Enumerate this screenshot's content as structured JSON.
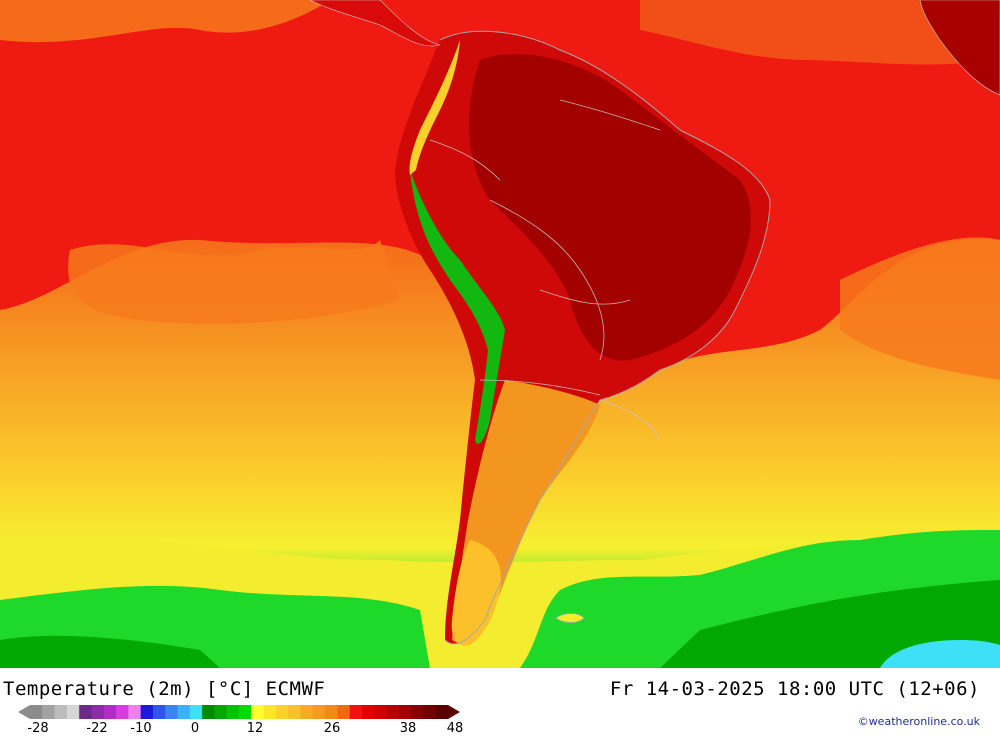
{
  "header": {
    "title_left": "Temperature (2m) [°C] ECMWF",
    "title_right": "Fr 14-03-2025 18:00 UTC (12+06)"
  },
  "legend": {
    "ticks": [
      "-28",
      "-22",
      "-10",
      "0",
      "12",
      "26",
      "38",
      "48"
    ],
    "colors": [
      "#8c8c8c",
      "#a3a3a3",
      "#bdbdbd",
      "#d6d6d6",
      "#6e2a8a",
      "#8e2ca8",
      "#b02cc4",
      "#d63ce0",
      "#f080f0",
      "#1a1ad8",
      "#2f55ea",
      "#3a85f2",
      "#3ab2f6",
      "#3ee0f8",
      "#008c00",
      "#00a800",
      "#00c400",
      "#00dc00",
      "#ffff30",
      "#ffe628",
      "#fcd22a",
      "#f8c02a",
      "#f7ab25",
      "#f59a1e",
      "#f28a18",
      "#ef6a12",
      "#f21010",
      "#e40000",
      "#cf0000",
      "#b80000",
      "#a20000",
      "#880000",
      "#700000",
      "#5a0000"
    ]
  },
  "credit": "©weatheronline.co.uk"
}
